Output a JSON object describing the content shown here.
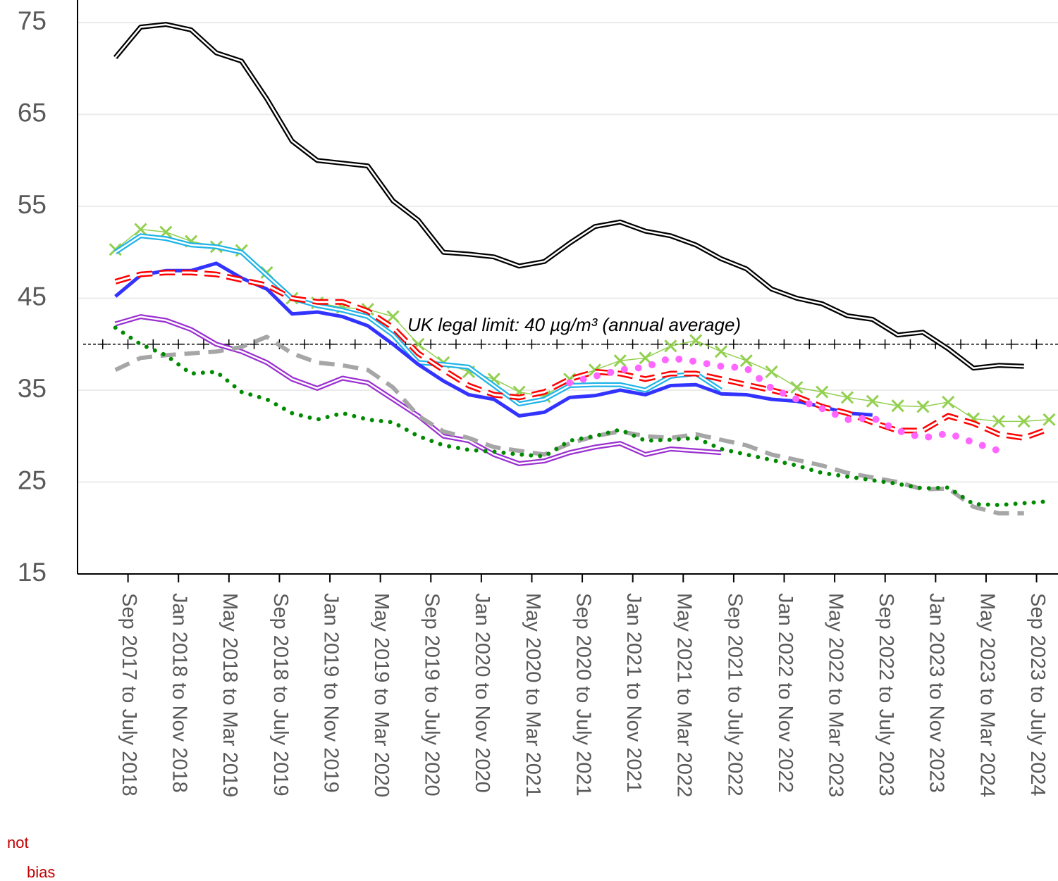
{
  "chart_data": {
    "type": "line",
    "xlim": [
      -4,
      73.7
    ],
    "xticks": [
      {
        "value": 0,
        "label": "Sep 2017 to July 2018"
      },
      {
        "value": 4,
        "label": "Jan 2018 to Nov 2018"
      },
      {
        "value": 8,
        "label": "May 2018 to Mar 2019"
      },
      {
        "value": 12,
        "label": "Sep 2018 to July 2019"
      },
      {
        "value": 16,
        "label": "Jan 2019 to Nov 2019"
      },
      {
        "value": 20,
        "label": "May 2019 to Mar 2020"
      },
      {
        "value": 24,
        "label": "Sep 2019 to July 2020"
      },
      {
        "value": 28,
        "label": "Jan 2020 to Nov 2020"
      },
      {
        "value": 32,
        "label": "May 2020 to Mar 2021"
      },
      {
        "value": 36,
        "label": "Sep 2020 to July 2021"
      },
      {
        "value": 40,
        "label": "Jan 2021 to Nov 2021"
      },
      {
        "value": 44,
        "label": "May 2021 to Mar 2022"
      },
      {
        "value": 48,
        "label": "Sep 2021 to July 2022"
      },
      {
        "value": 52,
        "label": "Jan 2022 to Nov 2022"
      },
      {
        "value": 56,
        "label": "May 2022 to Mar 2023"
      },
      {
        "value": 60,
        "label": "Sep 2022 to July 2023"
      },
      {
        "value": 64,
        "label": "Jan 2023 to Nov 2023"
      },
      {
        "value": 68,
        "label": "May 2023 to Mar 2024"
      },
      {
        "value": 72,
        "label": "Sep 2023 to July 2024"
      }
    ],
    "ylim": [
      15,
      75
    ],
    "yticks": [
      15,
      25,
      35,
      45,
      55,
      65,
      75
    ],
    "grid": true,
    "x": [
      -1,
      1,
      3,
      5,
      7,
      9,
      11,
      13,
      15,
      17,
      19,
      21,
      23,
      25,
      27,
      29,
      31,
      33,
      35,
      37,
      39,
      41,
      43,
      45,
      47,
      49,
      51,
      53,
      55,
      57,
      59,
      61,
      63,
      65,
      67,
      69,
      71,
      73
    ],
    "limit_line": {
      "value": 40,
      "label": "UK legal limit:  40 µg/m³ (annual average)"
    },
    "footnote_fragments": [
      "not",
      "bias"
    ],
    "series": [
      {
        "color": "#000000",
        "line_style": "double",
        "values": [
          71.2,
          74.5,
          74.8,
          74.2,
          71.7,
          70.8,
          66.7,
          62.1,
          60.0,
          59.7,
          59.4,
          55.6,
          53.5,
          50.0,
          49.8,
          49.5,
          48.5,
          49.0,
          51,
          52.8,
          53.3,
          52.3,
          51.8,
          50.8,
          49.3,
          48.2,
          46,
          45,
          44.4,
          43.1,
          42.7,
          41,
          41.3,
          39.5,
          37.4,
          37.7,
          37.6,
          null
        ]
      },
      {
        "color": "#92d050",
        "line_style": "thin",
        "marker": "x",
        "values": [
          50.3,
          52.5,
          52.2,
          51.2,
          50.6,
          50.2,
          47.8,
          45.0,
          44.5,
          44.0,
          43.8,
          43.0,
          40.0,
          38.0,
          37.0,
          36.2,
          34.8,
          34.3,
          36.2,
          37.2,
          38.2,
          38.5,
          39.8,
          40.4,
          39.2,
          38.2,
          37.0,
          35.3,
          34.8,
          34.2,
          33.8,
          33.3,
          33.2,
          33.7,
          31.9,
          31.6,
          31.6,
          31.8
        ]
      },
      {
        "color": "#1fb4e8",
        "line_style": "double",
        "values": [
          50.0,
          51.8,
          51.5,
          50.8,
          50.6,
          50.0,
          47.5,
          45.0,
          44.2,
          43.7,
          43.0,
          41.0,
          38.0,
          37.8,
          37.5,
          35.5,
          33.5,
          34.0,
          35.5,
          35.6,
          35.6,
          35.0,
          36.5,
          36.8,
          35.0,
          null,
          null,
          null,
          null,
          null,
          null,
          null,
          null,
          null,
          null,
          null,
          null,
          null
        ]
      },
      {
        "color": "#3333ff",
        "line_style": "thick",
        "values": [
          45.2,
          47.5,
          48.0,
          48.0,
          48.8,
          47.2,
          46.0,
          43.3,
          43.5,
          43.0,
          42.0,
          40.0,
          37.8,
          36.0,
          34.5,
          34.0,
          32.2,
          32.6,
          34.2,
          34.4,
          35.0,
          34.5,
          35.5,
          35.6,
          34.6,
          34.5,
          34.0,
          33.8,
          33.2,
          32.5,
          32.3,
          null,
          null,
          null,
          null,
          null,
          null,
          null
        ]
      },
      {
        "color": "#ff0000",
        "line_style": "dashed-double",
        "values": [
          46.8,
          47.6,
          47.8,
          47.8,
          47.6,
          47.0,
          46.4,
          45.0,
          44.6,
          44.6,
          43.6,
          41.8,
          39.0,
          37.2,
          35.5,
          34.5,
          34.2,
          34.8,
          36.2,
          37.0,
          36.8,
          36.2,
          36.8,
          36.8,
          36.2,
          35.6,
          35.0,
          34.3,
          33.2,
          32.5,
          31.5,
          30.6,
          30.6,
          32.2,
          31.4,
          30.2,
          29.8,
          30.8
        ]
      },
      {
        "color": "#ff66ff",
        "line_style": "big-dots",
        "values": [
          null,
          null,
          null,
          null,
          null,
          null,
          null,
          null,
          null,
          null,
          null,
          null,
          null,
          null,
          null,
          null,
          null,
          null,
          35.8,
          36.5,
          37.2,
          37.5,
          38.5,
          38.1,
          37.6,
          37.4,
          35.2,
          34.0,
          33.0,
          31.8,
          32.0,
          30.6,
          29.8,
          30.3,
          29.3,
          28.4,
          null,
          null
        ]
      },
      {
        "color": "#9b30d0",
        "line_style": "double",
        "values": [
          42.2,
          43.0,
          42.6,
          41.6,
          40.0,
          39.2,
          38.0,
          36.2,
          35.2,
          36.3,
          35.8,
          34.0,
          32.2,
          30.0,
          29.5,
          28.0,
          27.0,
          27.3,
          28.2,
          28.8,
          29.2,
          28.0,
          28.6,
          28.4,
          28.2,
          null,
          null,
          null,
          null,
          null,
          null,
          null,
          null,
          null,
          null,
          null,
          null,
          null
        ]
      },
      {
        "color": "#a6a6a6",
        "line_style": "dashed",
        "values": [
          37.2,
          38.5,
          38.8,
          39.0,
          39.2,
          39.7,
          40.8,
          39.0,
          38.0,
          37.7,
          37.2,
          35.3,
          32.2,
          30.5,
          29.8,
          28.8,
          28.4,
          28.0,
          29.2,
          30.0,
          30.5,
          30.0,
          29.8,
          30.2,
          29.6,
          29.0,
          28.0,
          27.4,
          26.8,
          26.0,
          25.5,
          25.0,
          24.2,
          24.3,
          22.3,
          21.6,
          21.6,
          null
        ]
      },
      {
        "color": "#008a00",
        "line_style": "dotted",
        "values": [
          41.8,
          40.0,
          38.8,
          36.8,
          37.0,
          34.8,
          34.0,
          32.5,
          31.8,
          32.5,
          31.8,
          31.5,
          30.0,
          29.0,
          28.5,
          28.3,
          28.0,
          27.8,
          29.5,
          30.0,
          30.7,
          29.5,
          29.6,
          29.8,
          28.6,
          28.0,
          27.4,
          26.8,
          26.0,
          25.6,
          25.2,
          24.8,
          24.3,
          24.4,
          22.6,
          22.5,
          22.7,
          22.9
        ]
      }
    ]
  }
}
